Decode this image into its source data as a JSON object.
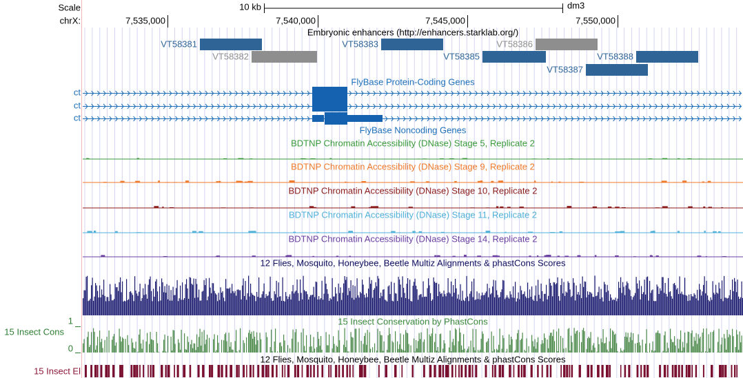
{
  "ruler": {
    "scale_label": "Scale",
    "chrom_label": "chrX:",
    "scale_bar_label": "10 kb",
    "assembly": "dm3",
    "ticks": [
      "7,535,000",
      "7,540,000",
      "7,545,000",
      "7,550,000"
    ]
  },
  "tracks": {
    "enhancers": {
      "title": "Embryonic enhancers (http://enhancers.starklab.org/)",
      "items": [
        "VT58381",
        "VT58382",
        "VT58383",
        "VT58386",
        "VT58385",
        "VT58388",
        "VT58387"
      ]
    },
    "genes": {
      "title": "FlyBase Protein-Coding Genes",
      "rows": [
        "ct",
        "ct",
        "ct"
      ]
    },
    "noncoding": {
      "title": "FlyBase Noncoding Genes"
    },
    "dnase": [
      "BDTNP Chromatin Accessibility (DNase) Stage 5, Replicate 2",
      "BDTNP Chromatin Accessibility (DNase) Stage 9, Replicate 2",
      "BDTNP Chromatin Accessibility (DNase) Stage 10, Replicate 2",
      "BDTNP Chromatin Accessibility (DNase) Stage 11, Replicate 2",
      "BDTNP Chromatin Accessibility (DNase) Stage 14, Replicate 2"
    ],
    "multiz": {
      "title": "12 Flies, Mosquito, Honeybee, Beetle Multiz Alignments & phastCons Scores"
    },
    "phastcons": {
      "label": "15 Insect Cons",
      "title": "15 Insect Conservation by PhastCons",
      "max_label": "1",
      "min_label": "0"
    },
    "elements": {
      "label": "15 Insect El",
      "title": "12 Flies, Mosquito, Honeybee, Beetle Multiz Alignments & phastCons Scores"
    }
  }
}
